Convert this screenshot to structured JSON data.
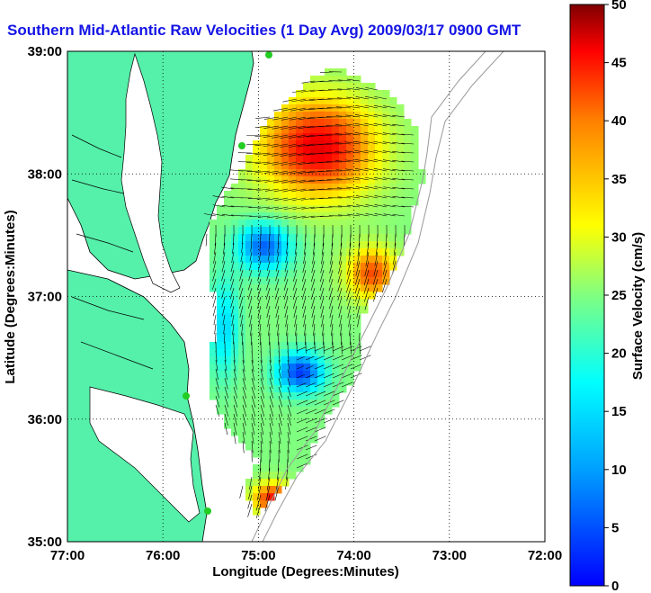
{
  "title": "Southern Mid-Atlantic Raw Velocities (1 Day Avg) 2009/03/17 0900 GMT",
  "x_axis": {
    "label": "Longitude (Degrees:Minutes)",
    "ticks": [
      "77:00",
      "76:00",
      "75:00",
      "74:00",
      "73:00",
      "72:00"
    ],
    "values": [
      -77,
      -76,
      -75,
      -74,
      -73,
      -72
    ],
    "range": [
      -77,
      -72
    ]
  },
  "y_axis": {
    "label": "Latitude (Degrees:Minutes)",
    "ticks": [
      "39:00",
      "38:00",
      "37:00",
      "36:00",
      "35:00"
    ],
    "values": [
      39,
      38,
      37,
      36,
      35
    ],
    "range": [
      35,
      39
    ]
  },
  "colorbar": {
    "label": "Surface Velocity (cm/s)",
    "ticks": [
      "50",
      "45",
      "40",
      "35",
      "30",
      "25",
      "20",
      "15",
      "10",
      "5",
      "0"
    ],
    "values": [
      50,
      45,
      40,
      35,
      30,
      25,
      20,
      15,
      10,
      5,
      0
    ],
    "range": [
      0,
      50
    ],
    "colormap": "jet"
  },
  "colors": {
    "land": "#55f0aa",
    "water": "#ffffff",
    "title": "#1414e6",
    "vector": "#000000",
    "station": "#22cc22"
  },
  "grid": "dotted"
}
